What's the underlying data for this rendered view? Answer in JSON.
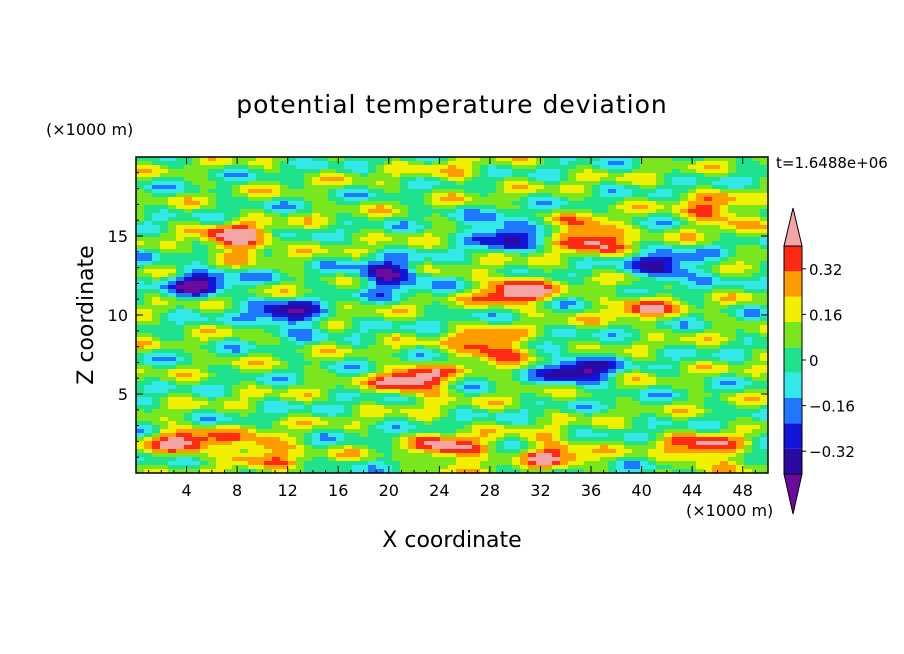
{
  "chart_data": {
    "type": "heatmap",
    "title": "potential temperature deviation",
    "xlabel": "X coordinate",
    "ylabel": "Z coordinate",
    "x_units": "(×1000 m)",
    "y_units": "(×1000 m)",
    "time_label": "t=1.6488e+06",
    "xlim": [
      0,
      50
    ],
    "ylim": [
      0,
      20
    ],
    "x_ticks": [
      4,
      8,
      12,
      16,
      20,
      24,
      28,
      32,
      36,
      40,
      44,
      48
    ],
    "y_ticks": [
      5,
      10,
      15
    ],
    "colorbar": {
      "levels": [
        -0.4,
        -0.32,
        -0.24,
        -0.16,
        -0.08,
        0,
        0.08,
        0.16,
        0.24,
        0.32,
        0.4
      ],
      "tick_labels": [
        "0.32",
        "0.16",
        "0",
        "−0.16",
        "−0.32"
      ],
      "tick_values": [
        0.32,
        0.16,
        0,
        -0.16,
        -0.32
      ],
      "colors": [
        "#6a0aa0",
        "#2a0aa0",
        "#1414d8",
        "#1f78ff",
        "#33e8e8",
        "#1ee28c",
        "#7ae61e",
        "#f0f000",
        "#ff9c00",
        "#ff2a14",
        "#f4a6a6"
      ],
      "extend": "both"
    },
    "field_features": [
      {
        "x": 4,
        "z": 2.0,
        "value": 0.34
      },
      {
        "x": 10,
        "z": 1.5,
        "value": 0.3
      },
      {
        "x": 25,
        "z": 1.5,
        "value": 0.36
      },
      {
        "x": 33,
        "z": 1.3,
        "value": 0.3
      },
      {
        "x": 45,
        "z": 1.5,
        "value": 0.34
      },
      {
        "x": 22,
        "z": 5.8,
        "value": 0.42
      },
      {
        "x": 35,
        "z": 6.5,
        "value": -0.42
      },
      {
        "x": 28,
        "z": 8.0,
        "value": 0.38
      },
      {
        "x": 12,
        "z": 10.0,
        "value": -0.38
      },
      {
        "x": 30,
        "z": 11.5,
        "value": 0.42
      },
      {
        "x": 20,
        "z": 12.5,
        "value": -0.42
      },
      {
        "x": 8,
        "z": 14.8,
        "value": 0.42
      },
      {
        "x": 36,
        "z": 15.0,
        "value": 0.42
      },
      {
        "x": 29,
        "z": 15.2,
        "value": -0.38
      },
      {
        "x": 42,
        "z": 13.0,
        "value": -0.38
      },
      {
        "x": 46,
        "z": 16.5,
        "value": 0.3
      },
      {
        "x": 5,
        "z": 12.0,
        "value": -0.36
      },
      {
        "x": 40,
        "z": 10.5,
        "value": 0.24
      },
      {
        "x": 25,
        "z": 18.8,
        "value": 0.08
      }
    ]
  }
}
